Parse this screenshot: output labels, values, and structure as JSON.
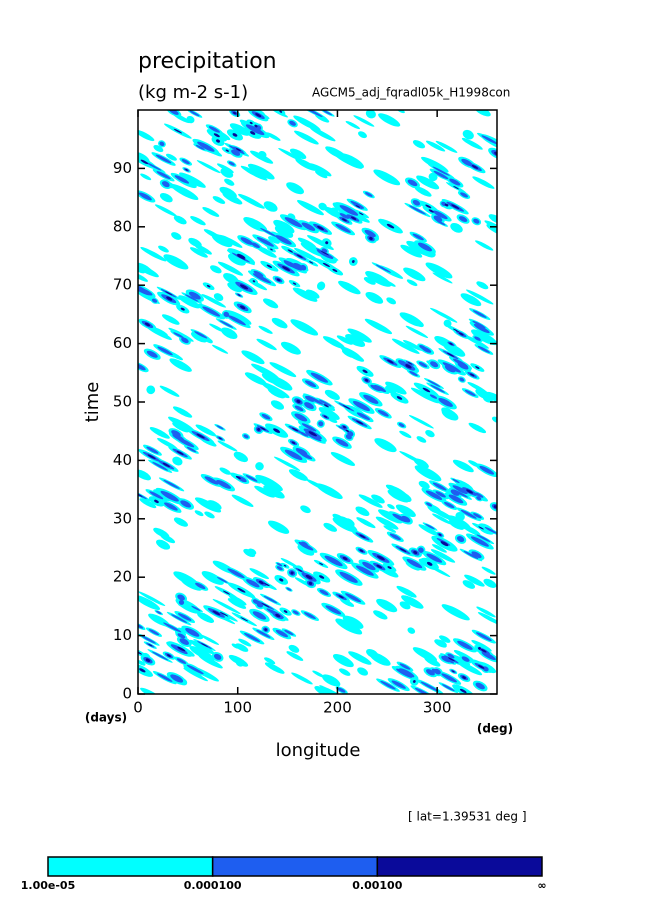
{
  "chart_data": {
    "type": "contour",
    "title": "precipitation",
    "units": "(kg m-2 s-1)",
    "subtitle": "AGCM5_adj_fqradl05k_H1998con",
    "y_label": "time",
    "y_unit": "(days)",
    "x_label": "longitude",
    "x_unit": "(deg)",
    "annotation": "[ lat=1.39531 deg ]",
    "xlim": [
      0,
      360
    ],
    "xticks": [
      0,
      100,
      200,
      300
    ],
    "ylim": [
      0,
      100
    ],
    "yticks": [
      0,
      10,
      20,
      30,
      40,
      50,
      60,
      70,
      80,
      90
    ],
    "colorbar": {
      "levels": [
        {
          "value": 1e-05,
          "label": "1.00e-05"
        },
        {
          "value": 0.0001,
          "label": "0.000100"
        },
        {
          "value": 0.001,
          "label": "0.00100"
        }
      ],
      "open_end_label": "∞",
      "colors": [
        "#00ffff",
        "#1e5ef0",
        "#0a0a9a"
      ]
    }
  }
}
